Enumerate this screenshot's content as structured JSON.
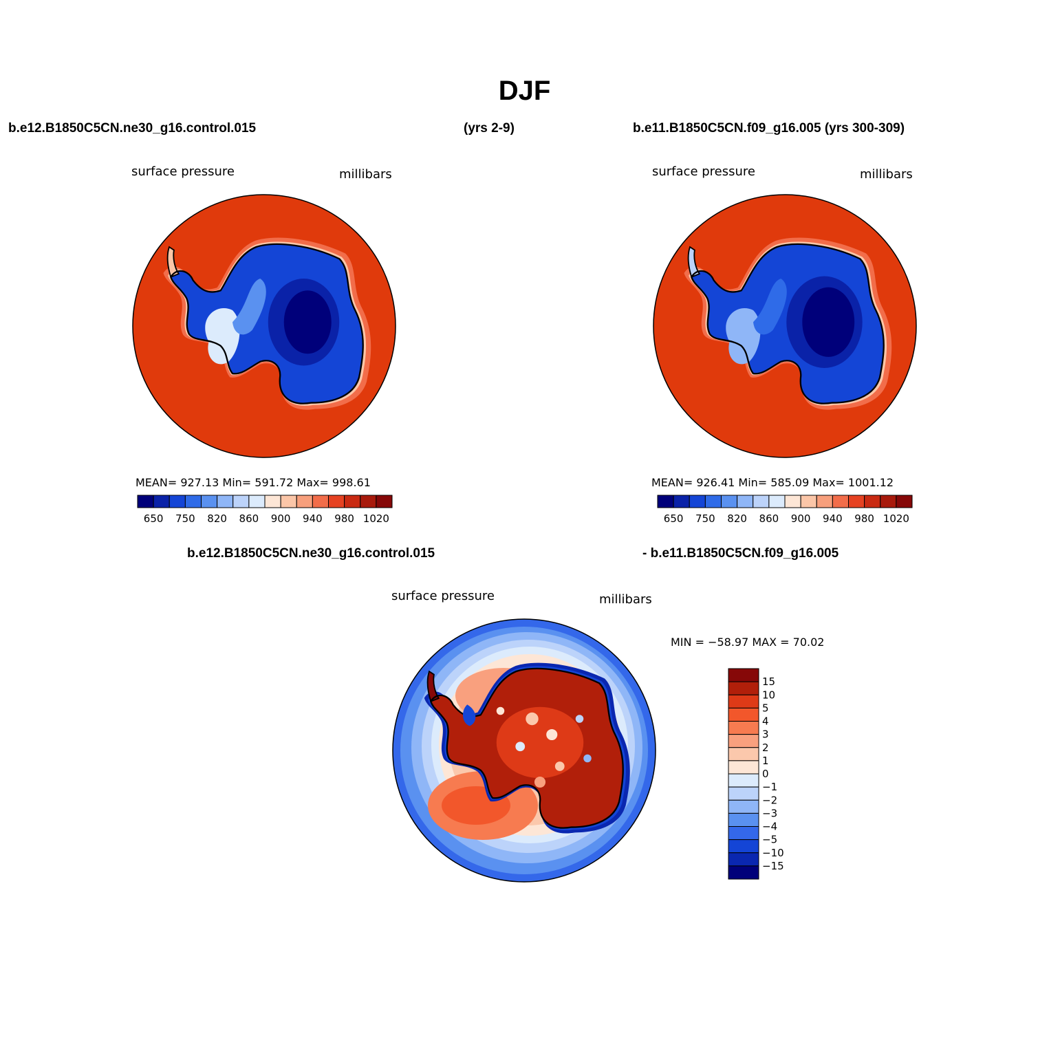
{
  "title": "DJF",
  "top_left_case": "b.e12.B1850C5CN.ne30_g16.control.015",
  "top_left_years": "(yrs 2-9)",
  "top_right_case": "b.e11.B1850C5CN.f09_g16.005 (yrs 300-309)",
  "bottom_case_a": "b.e12.B1850C5CN.ne30_g16.control.015",
  "bottom_case_b": "- b.e11.B1850C5CN.f09_g16.005",
  "panels": [
    {
      "variable": "surface pressure",
      "units": "millibars",
      "stats": "MEAN= 927.13   Min= 591.72   Max= 998.61"
    },
    {
      "variable": "surface pressure",
      "units": "millibars",
      "stats": "MEAN= 926.41   Min= 585.09   Max= 1001.12"
    },
    {
      "variable": "surface pressure",
      "units": "millibars",
      "stats": "MIN = −58.97 MAX =   70.02"
    }
  ],
  "abs_colorbar": {
    "colors": [
      "#00007a",
      "#0a22a8",
      "#1445d6",
      "#2f6be8",
      "#5a91f0",
      "#8fb6f7",
      "#bcd3fa",
      "#dcebfc",
      "#fde6d6",
      "#fbc6a8",
      "#f79f7c",
      "#f26d4a",
      "#e64222",
      "#c92a12",
      "#a81a0c",
      "#860808"
    ],
    "labels": [
      "650",
      "750",
      "820",
      "860",
      "900",
      "940",
      "980",
      "1020"
    ]
  },
  "diff_colorbar": {
    "colors": [
      "#860808",
      "#b11f0a",
      "#de3a17",
      "#f2572b",
      "#f77b50",
      "#f9a07e",
      "#fbc8ac",
      "#fde6d6",
      "#dcebfc",
      "#bcd3fa",
      "#8fb6f7",
      "#5a91f0",
      "#3468ea",
      "#1445d6",
      "#0a27b0",
      "#00007a"
    ],
    "labels": [
      "15",
      "10",
      "5",
      "4",
      "3",
      "2",
      "1",
      "0",
      "−1",
      "−2",
      "−3",
      "−4",
      "−5",
      "−10",
      "−15"
    ]
  },
  "colors": {
    "ocean_abs": "#e03a0c",
    "land_low": "#00007a",
    "coast": "#000000"
  }
}
